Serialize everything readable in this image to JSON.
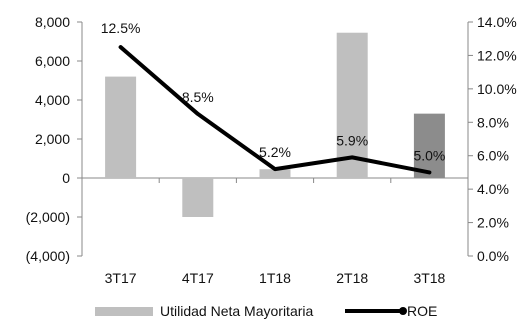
{
  "chart_data": {
    "type": "bar",
    "categories": [
      "3T17",
      "4T17",
      "1T18",
      "2T18",
      "3T18"
    ],
    "series": [
      {
        "name": "Utilidad Neta Mayoritaria",
        "type": "bar",
        "axis": "left",
        "values": [
          5200,
          -2000,
          450,
          7450,
          3300
        ],
        "colors": [
          "#bfbfbf",
          "#bfbfbf",
          "#bfbfbf",
          "#bfbfbf",
          "#8c8c8c"
        ]
      },
      {
        "name": "ROE",
        "type": "line",
        "axis": "right",
        "values": [
          12.5,
          8.5,
          5.2,
          5.9,
          5.0
        ],
        "labels": [
          "12.5%",
          "8.5%",
          "5.2%",
          "5.9%",
          "5.0%"
        ],
        "color": "#000000"
      }
    ],
    "left_axis": {
      "ylim": [
        -4000,
        8000
      ],
      "ticks": [
        8000,
        6000,
        4000,
        2000,
        0,
        -2000,
        -4000
      ],
      "tick_labels": [
        "8,000",
        "6,000",
        "4,000",
        "2,000",
        "0",
        "(2,000)",
        "(4,000)"
      ]
    },
    "right_axis": {
      "ylim": [
        0,
        14
      ],
      "ticks": [
        14,
        12,
        10,
        8,
        6,
        4,
        2,
        0
      ],
      "tick_labels": [
        "14.0%",
        "12.0%",
        "10.0%",
        "8.0%",
        "6.0%",
        "4.0%",
        "2.0%",
        "0.0%"
      ]
    },
    "legend": {
      "position": "bottom",
      "items": [
        "Utilidad Neta Mayoritaria",
        "ROE"
      ]
    },
    "grid": false
  }
}
